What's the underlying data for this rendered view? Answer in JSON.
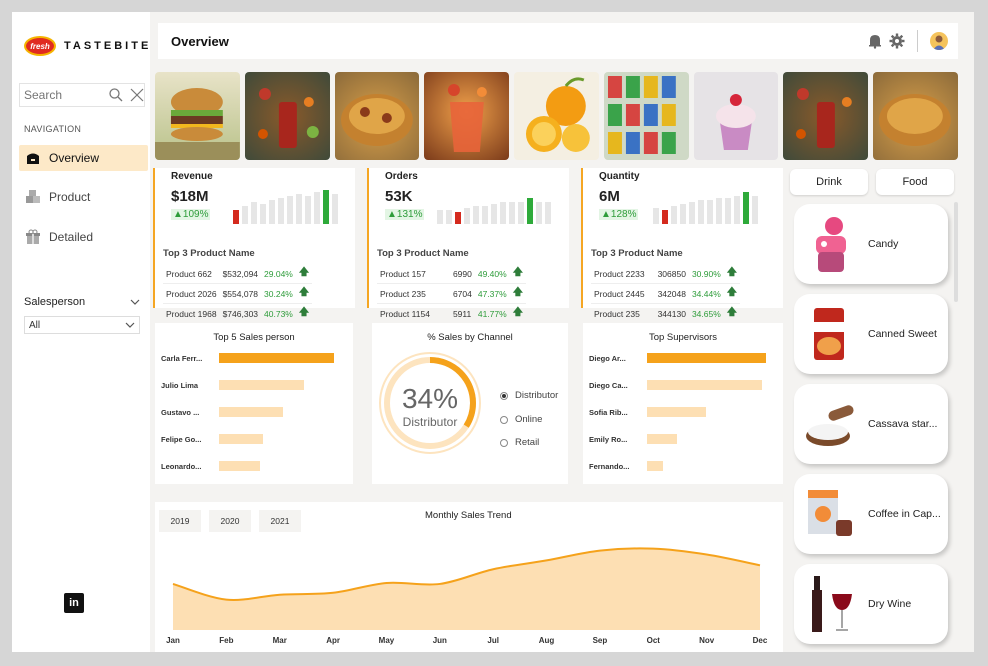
{
  "brand": {
    "badge": "fresh",
    "name": "TASTEBITE"
  },
  "search": {
    "placeholder": "Search"
  },
  "nav": {
    "title": "NAVIGATION",
    "items": [
      {
        "label": "Overview",
        "active": true
      },
      {
        "label": "Product",
        "active": false
      },
      {
        "label": "Detailed",
        "active": false
      }
    ]
  },
  "filter": {
    "label": "Salesperson",
    "value": "All"
  },
  "header": {
    "title": "Overview"
  },
  "strip": [
    "burger",
    "cola-splash",
    "biryani",
    "juice",
    "oranges",
    "drink-cans",
    "cupcake",
    "cola-splash",
    "biryani"
  ],
  "kpis": [
    {
      "label": "Revenue",
      "value": "$18M",
      "change": "▲109%",
      "top3_title": "Top 3 Product Name",
      "rows": [
        [
          "Product 662",
          "$532,094",
          "29.04%"
        ],
        [
          "Product 2026",
          "$554,078",
          "30.24%"
        ],
        [
          "Product 1968",
          "$746,303",
          "40.73%"
        ]
      ]
    },
    {
      "label": "Orders",
      "value": "53K",
      "change": "▲131%",
      "top3_title": "Top 3 Product Name",
      "rows": [
        [
          "Product 157",
          "6990",
          "49.40%"
        ],
        [
          "Product 235",
          "6704",
          "47.37%"
        ],
        [
          "Product 1154",
          "5911",
          "41.77%"
        ]
      ]
    },
    {
      "label": "Quantity",
      "value": "6M",
      "change": "▲128%",
      "top3_title": "Top 3 Product Name",
      "rows": [
        [
          "Product 2233",
          "306850",
          "30.90%"
        ],
        [
          "Product 2445",
          "342048",
          "34.44%"
        ],
        [
          "Product 235",
          "344130",
          "34.65%"
        ]
      ]
    }
  ],
  "top_sales": {
    "title": "Top 5 Sales person",
    "items": [
      {
        "name": "Carla Ferr...",
        "value": 0.92
      },
      {
        "name": "Julio Lima",
        "value": 0.68
      },
      {
        "name": "Gustavo ...",
        "value": 0.51
      },
      {
        "name": "Felipe Go...",
        "value": 0.35
      },
      {
        "name": "Leonardo...",
        "value": 0.33
      }
    ]
  },
  "channel": {
    "title": "% Sales by Channel",
    "percent": "34%",
    "label": "Distributor",
    "fraction": 0.34,
    "options": [
      {
        "label": "Distributor",
        "selected": true
      },
      {
        "label": "Online",
        "selected": false
      },
      {
        "label": "Retail",
        "selected": false
      }
    ]
  },
  "supervisors": {
    "title": "Top Supervisors",
    "items": [
      {
        "name": "Diego Ar...",
        "value": 0.95
      },
      {
        "name": "Diego Ca...",
        "value": 0.92
      },
      {
        "name": "Sofia Rib...",
        "value": 0.47
      },
      {
        "name": "Emily Ro...",
        "value": 0.24
      },
      {
        "name": "Fernando...",
        "value": 0.13
      }
    ]
  },
  "tabs": [
    "Drink",
    "Food"
  ],
  "products": [
    {
      "name": "Candy",
      "icon": "candy-icon"
    },
    {
      "name": "Canned Sweet",
      "icon": "canned-sweet-icon"
    },
    {
      "name": "Cassava star...",
      "icon": "cassava-icon"
    },
    {
      "name": "Coffee in Cap...",
      "icon": "coffee-capsule-icon"
    },
    {
      "name": "Dry Wine",
      "icon": "wine-icon"
    }
  ],
  "trend": {
    "title": "Monthly Sales Trend",
    "years": [
      "2019",
      "2020",
      "2021"
    ]
  },
  "colors": {
    "accent": "#f5a21b",
    "accent_light": "#fddfb3",
    "positive": "#2e9c3a",
    "negative": "#d42a1e"
  },
  "chart_data": {
    "type": "area",
    "title": "Monthly Sales Trend",
    "categories": [
      "Jan",
      "Feb",
      "Mar",
      "Apr",
      "May",
      "Jun",
      "Jul",
      "Aug",
      "Sep",
      "Oct",
      "Nov",
      "Dec"
    ],
    "values": [
      0.47,
      0.31,
      0.36,
      0.38,
      0.48,
      0.47,
      0.62,
      0.71,
      0.81,
      0.83,
      0.77,
      0.66
    ],
    "ylim": [
      0,
      1
    ],
    "grid": false
  }
}
